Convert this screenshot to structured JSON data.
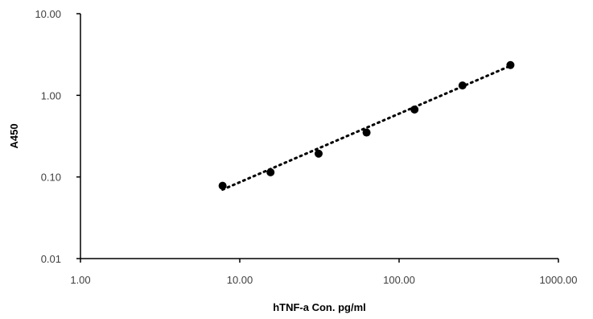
{
  "chart_data": {
    "type": "scatter",
    "x_scale": "log",
    "y_scale": "log",
    "xlim": [
      1,
      1000
    ],
    "ylim": [
      0.01,
      10
    ],
    "x_ticks": [
      1,
      10,
      100,
      1000
    ],
    "y_ticks": [
      0.01,
      0.1,
      1,
      10
    ],
    "x_tick_labels": [
      "1.00",
      "10.00",
      "100.00",
      "1000.00"
    ],
    "y_tick_labels": [
      "0.01",
      "0.10",
      "1.00",
      "10.00"
    ],
    "xlabel": "hTNF-a Con. pg/ml",
    "ylabel": "A450",
    "grid": false,
    "legend": "none",
    "points": {
      "x": [
        7.8,
        15.6,
        31.25,
        62.5,
        125,
        250,
        500
      ],
      "y": [
        0.078,
        0.114,
        0.193,
        0.35,
        0.67,
        1.32,
        2.35
      ]
    },
    "trendline": {
      "style": "dotted",
      "x": [
        7.8,
        500
      ],
      "y": [
        0.07,
        2.3
      ]
    },
    "colors": {
      "points": "#000000",
      "trendline": "#000000",
      "axes": "#000000"
    }
  }
}
